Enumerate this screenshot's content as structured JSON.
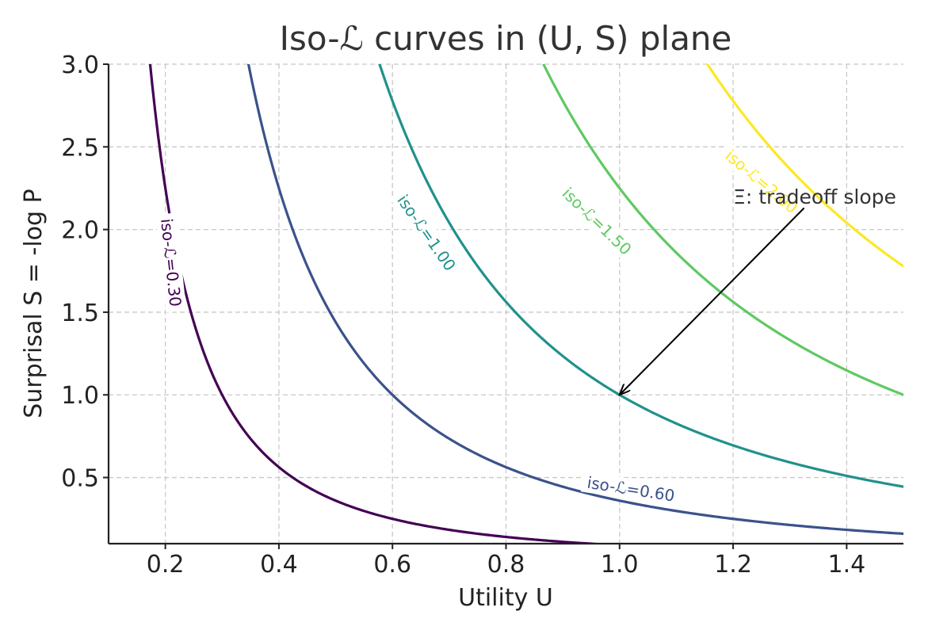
{
  "chart_data": {
    "type": "line",
    "title": "Iso-ℒ curves in (U, S) plane",
    "xlabel": "Utility U",
    "ylabel": "Surprisal S = -log P",
    "xlim": [
      0.1,
      1.5
    ],
    "ylim": [
      0.1,
      3.0
    ],
    "x_ticks": [
      0.2,
      0.4,
      0.6,
      0.8,
      1.0,
      1.2,
      1.4
    ],
    "y_ticks": [
      0.5,
      1.0,
      1.5,
      2.0,
      2.5,
      3.0
    ],
    "x_tick_labels": [
      "0.2",
      "0.4",
      "0.6",
      "0.8",
      "1.0",
      "1.2",
      "1.4"
    ],
    "y_tick_labels": [
      "0.5",
      "1.0",
      "1.5",
      "2.0",
      "2.5",
      "3.0"
    ],
    "grid": true,
    "grid_style": "dashed",
    "series": [
      {
        "name": "iso-ℒ=0.30",
        "level": 0.3,
        "color": "#440154",
        "x": [
          0.155,
          0.2,
          0.3,
          0.4,
          0.5,
          0.6,
          0.8,
          1.0,
          1.2
        ],
        "y": [
          2.93,
          1.6,
          0.95,
          0.63,
          0.42,
          0.31,
          0.2,
          0.14,
          0.1
        ]
      },
      {
        "name": "iso-ℒ=0.60",
        "level": 0.6,
        "color": "#3b528b",
        "x": [
          0.31,
          0.4,
          0.5,
          0.6,
          0.8,
          1.0,
          1.2,
          1.4,
          1.5
        ],
        "y": [
          2.9,
          1.87,
          1.38,
          1.0,
          0.63,
          0.45,
          0.32,
          0.25,
          0.22
        ]
      },
      {
        "name": "iso-ℒ=1.00",
        "level": 1.0,
        "color": "#21918c",
        "x": [
          0.52,
          0.6,
          0.7,
          0.8,
          1.0,
          1.2,
          1.4,
          1.5
        ],
        "y": [
          2.9,
          2.22,
          1.87,
          1.46,
          1.0,
          0.75,
          0.58,
          0.51
        ]
      },
      {
        "name": "iso-ℒ=1.50",
        "level": 1.5,
        "color": "#5ec962",
        "x": [
          0.78,
          0.9,
          1.0,
          1.1,
          1.2,
          1.3,
          1.4,
          1.5
        ],
        "y": [
          2.9,
          2.3,
          1.91,
          1.64,
          1.45,
          1.27,
          1.12,
          1.0
        ]
      },
      {
        "name": "iso-ℒ=2.00",
        "level": 2.0,
        "color": "#fde725",
        "x": [
          1.04,
          1.1,
          1.2,
          1.3,
          1.4,
          1.5
        ],
        "y": [
          2.9,
          2.6,
          2.25,
          1.99,
          1.78,
          1.61
        ]
      }
    ],
    "contour_labels": [
      {
        "text": "iso-ℒ=0.30",
        "color": "#440154",
        "x": 0.21,
        "y": 1.8,
        "angle": 84
      },
      {
        "text": "iso-ℒ=0.60",
        "color": "#3b528b",
        "x": 1.02,
        "y": 0.43,
        "angle": 9
      },
      {
        "text": "iso-ℒ=1.00",
        "color": "#21918c",
        "x": 0.66,
        "y": 1.98,
        "angle": 55
      },
      {
        "text": "iso-ℒ=1.50",
        "color": "#5ec962",
        "x": 0.96,
        "y": 2.05,
        "angle": 44
      },
      {
        "text": "iso-ℒ=2.00",
        "color": "#fde725",
        "x": 1.25,
        "y": 2.29,
        "angle": 40
      }
    ],
    "annotation": {
      "text": "Ξ: tradeoff slope",
      "text_x": 1.2,
      "text_y": 2.2,
      "arrow_from": [
        1.325,
        2.13
      ],
      "arrow_to": [
        1.0,
        1.0
      ]
    }
  }
}
